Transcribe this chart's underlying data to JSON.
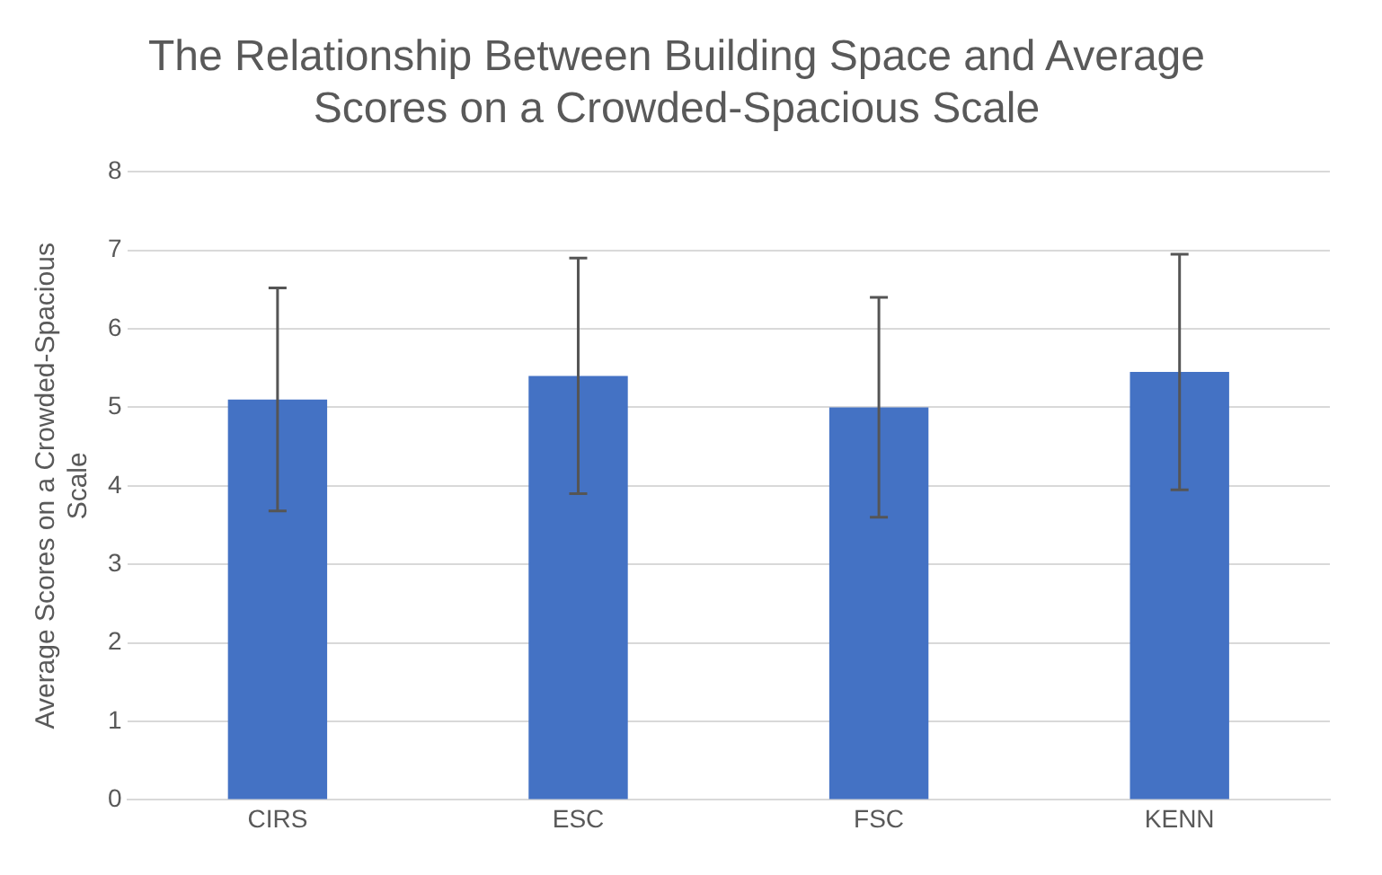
{
  "chart_data": {
    "type": "bar",
    "title": "The Relationship Between Building Space and Average Scores on a Crowded-Spacious Scale",
    "ylabel": "Average Scores on a Crowded-Spacious Scale",
    "categories": [
      "CIRS",
      "ESC",
      "FSC",
      "KENN"
    ],
    "values": [
      5.1,
      5.4,
      5.0,
      5.45
    ],
    "errors": [
      1.42,
      1.5,
      1.4,
      1.5
    ],
    "color": "#4472c4",
    "ylim": [
      0,
      8
    ],
    "yticks": [
      0,
      1,
      2,
      3,
      4,
      5,
      6,
      7,
      8
    ],
    "grid": "y",
    "legend": false
  }
}
